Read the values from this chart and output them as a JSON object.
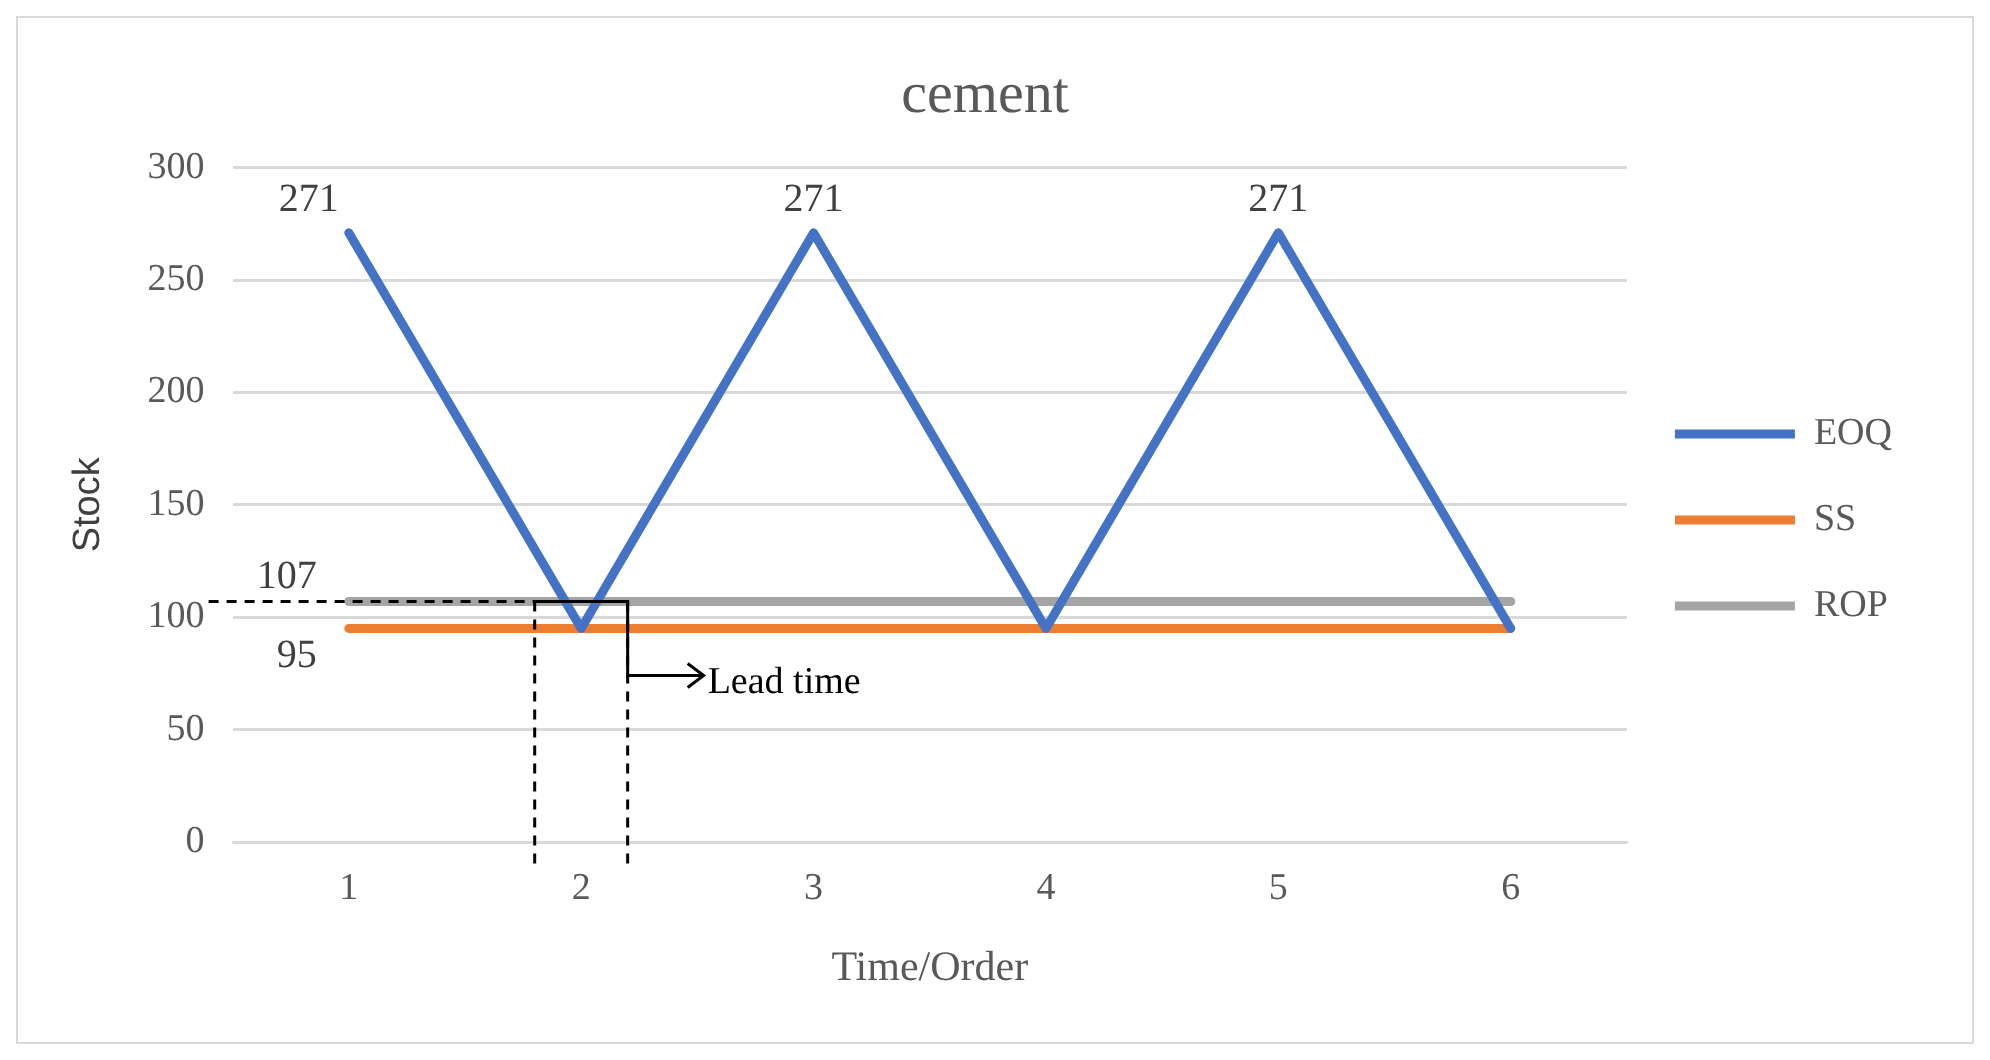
{
  "chart_data": {
    "type": "line",
    "title": "cement",
    "xlabel": "Time/Order",
    "ylabel": "Stock",
    "categories": [
      "1",
      "2",
      "3",
      "4",
      "5",
      "6"
    ],
    "series": [
      {
        "name": "EOQ",
        "color": "#4472c4",
        "values": [
          271,
          95,
          271,
          95,
          271,
          95
        ],
        "value_labels": [
          "271",
          null,
          "271",
          null,
          "271",
          null
        ]
      },
      {
        "name": "SS",
        "color": "#ed7d31",
        "values": [
          95,
          95,
          95,
          95,
          95,
          95
        ],
        "value_labels": [
          "95",
          null,
          null,
          null,
          null,
          null
        ]
      },
      {
        "name": "ROP",
        "color": "#a5a5a5",
        "values": [
          107,
          107,
          107,
          107,
          107,
          107
        ],
        "value_labels": [
          "107",
          null,
          null,
          null,
          null,
          null
        ]
      }
    ],
    "ylim": [
      0,
      300
    ],
    "yticks": [
      0,
      50,
      100,
      150,
      200,
      250,
      300
    ],
    "grid": "y",
    "legend": "right",
    "marker": "none",
    "line_style": "solid",
    "annotations": [
      {
        "text": "Lead time",
        "y": 107
      }
    ]
  }
}
